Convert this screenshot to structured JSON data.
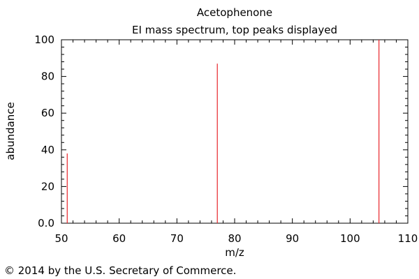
{
  "chart_data": {
    "type": "bar",
    "title": "Acetophenone",
    "subtitle": "EI mass spectrum, top peaks displayed",
    "xlabel": "m/z",
    "ylabel": "abundance",
    "xlim": [
      50,
      110
    ],
    "ylim": [
      0,
      100
    ],
    "x_ticks": [
      "50",
      "60",
      "70",
      "80",
      "90",
      "100",
      "110"
    ],
    "y_ticks": [
      "0.0",
      "20",
      "40",
      "60",
      "80",
      "100"
    ],
    "peaks": [
      {
        "x": 51,
        "y": 38
      },
      {
        "x": 77,
        "y": 87
      },
      {
        "x": 105,
        "y": 100
      }
    ],
    "grid": false,
    "peak_color": "#e8242a",
    "axis_color": "#000000"
  },
  "footer": {
    "copyright": "© 2014 by the U.S. Secretary of Commerce."
  }
}
